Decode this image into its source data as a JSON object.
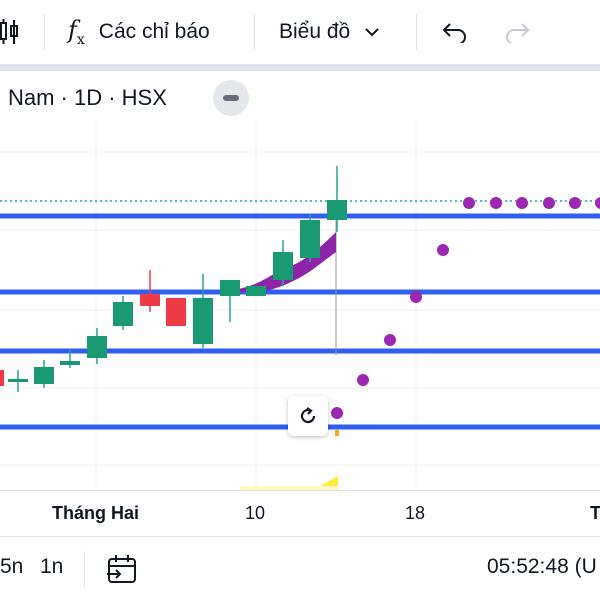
{
  "toolbar": {
    "indicators_label": "Các chỉ báo",
    "chart_type_label": "Biểu đồ",
    "icons": [
      "candles-icon",
      "fx-icon",
      "chevron-down-icon",
      "undo-icon",
      "redo-icon"
    ]
  },
  "legend": {
    "symbol_text": "Nam · 1D · HSX"
  },
  "chart_data": {
    "type": "candlestick",
    "x_labels": [
      "Tháng Hai",
      "10",
      "18",
      "T"
    ],
    "colors": {
      "up": "#26a69a",
      "up_body": "#1a9a73",
      "down": "#ef3a4a",
      "horizontal_lines": "#2f5ef0",
      "sar_dots": "#9c27b0",
      "top_band": "#4caf50"
    }
  },
  "bottom": {
    "range_5d": "5n",
    "range_1m": "1n",
    "time": "05:52:48 (U"
  }
}
